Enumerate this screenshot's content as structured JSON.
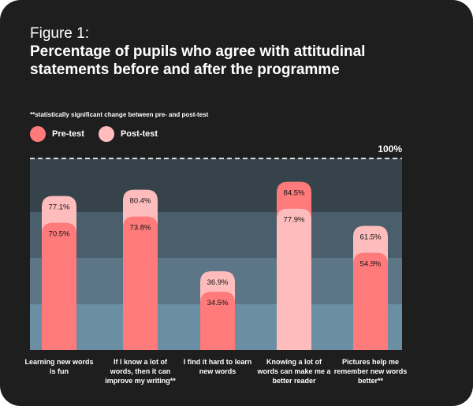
{
  "figure_label": "Figure 1:",
  "chart_data": {
    "type": "bar",
    "title": "Percentage of pupils who agree with attitudinal statements before and after the programme",
    "note": "**statistically significant change between pre- and post-test",
    "ylim": [
      0,
      100
    ],
    "max_label": "100%",
    "categories": [
      "Learning new words is fun",
      "If I know a lot of words, then it can improve my writing**",
      "I find it hard to learn new words",
      "Knowing a lot of words can make me a better reader",
      "Pictures help me remember new words better**"
    ],
    "series": [
      {
        "name": "Pre-test",
        "color": "#ff7a7a",
        "values": [
          70.5,
          73.8,
          34.5,
          84.5,
          54.9
        ],
        "labels": [
          "70.5%",
          "73.8%",
          "34.5%",
          "84.5%",
          "54.9%"
        ]
      },
      {
        "name": "Post-test",
        "color": "#ffbcbc",
        "values": [
          77.1,
          80.4,
          36.9,
          77.9,
          61.5
        ],
        "labels": [
          "77.1%",
          "80.4%",
          "36.9%",
          "77.9%",
          "61.5%"
        ]
      }
    ],
    "band_colors": [
      "#37434b",
      "#4a5e6b",
      "#5c7687",
      "#6a8ea4"
    ]
  }
}
